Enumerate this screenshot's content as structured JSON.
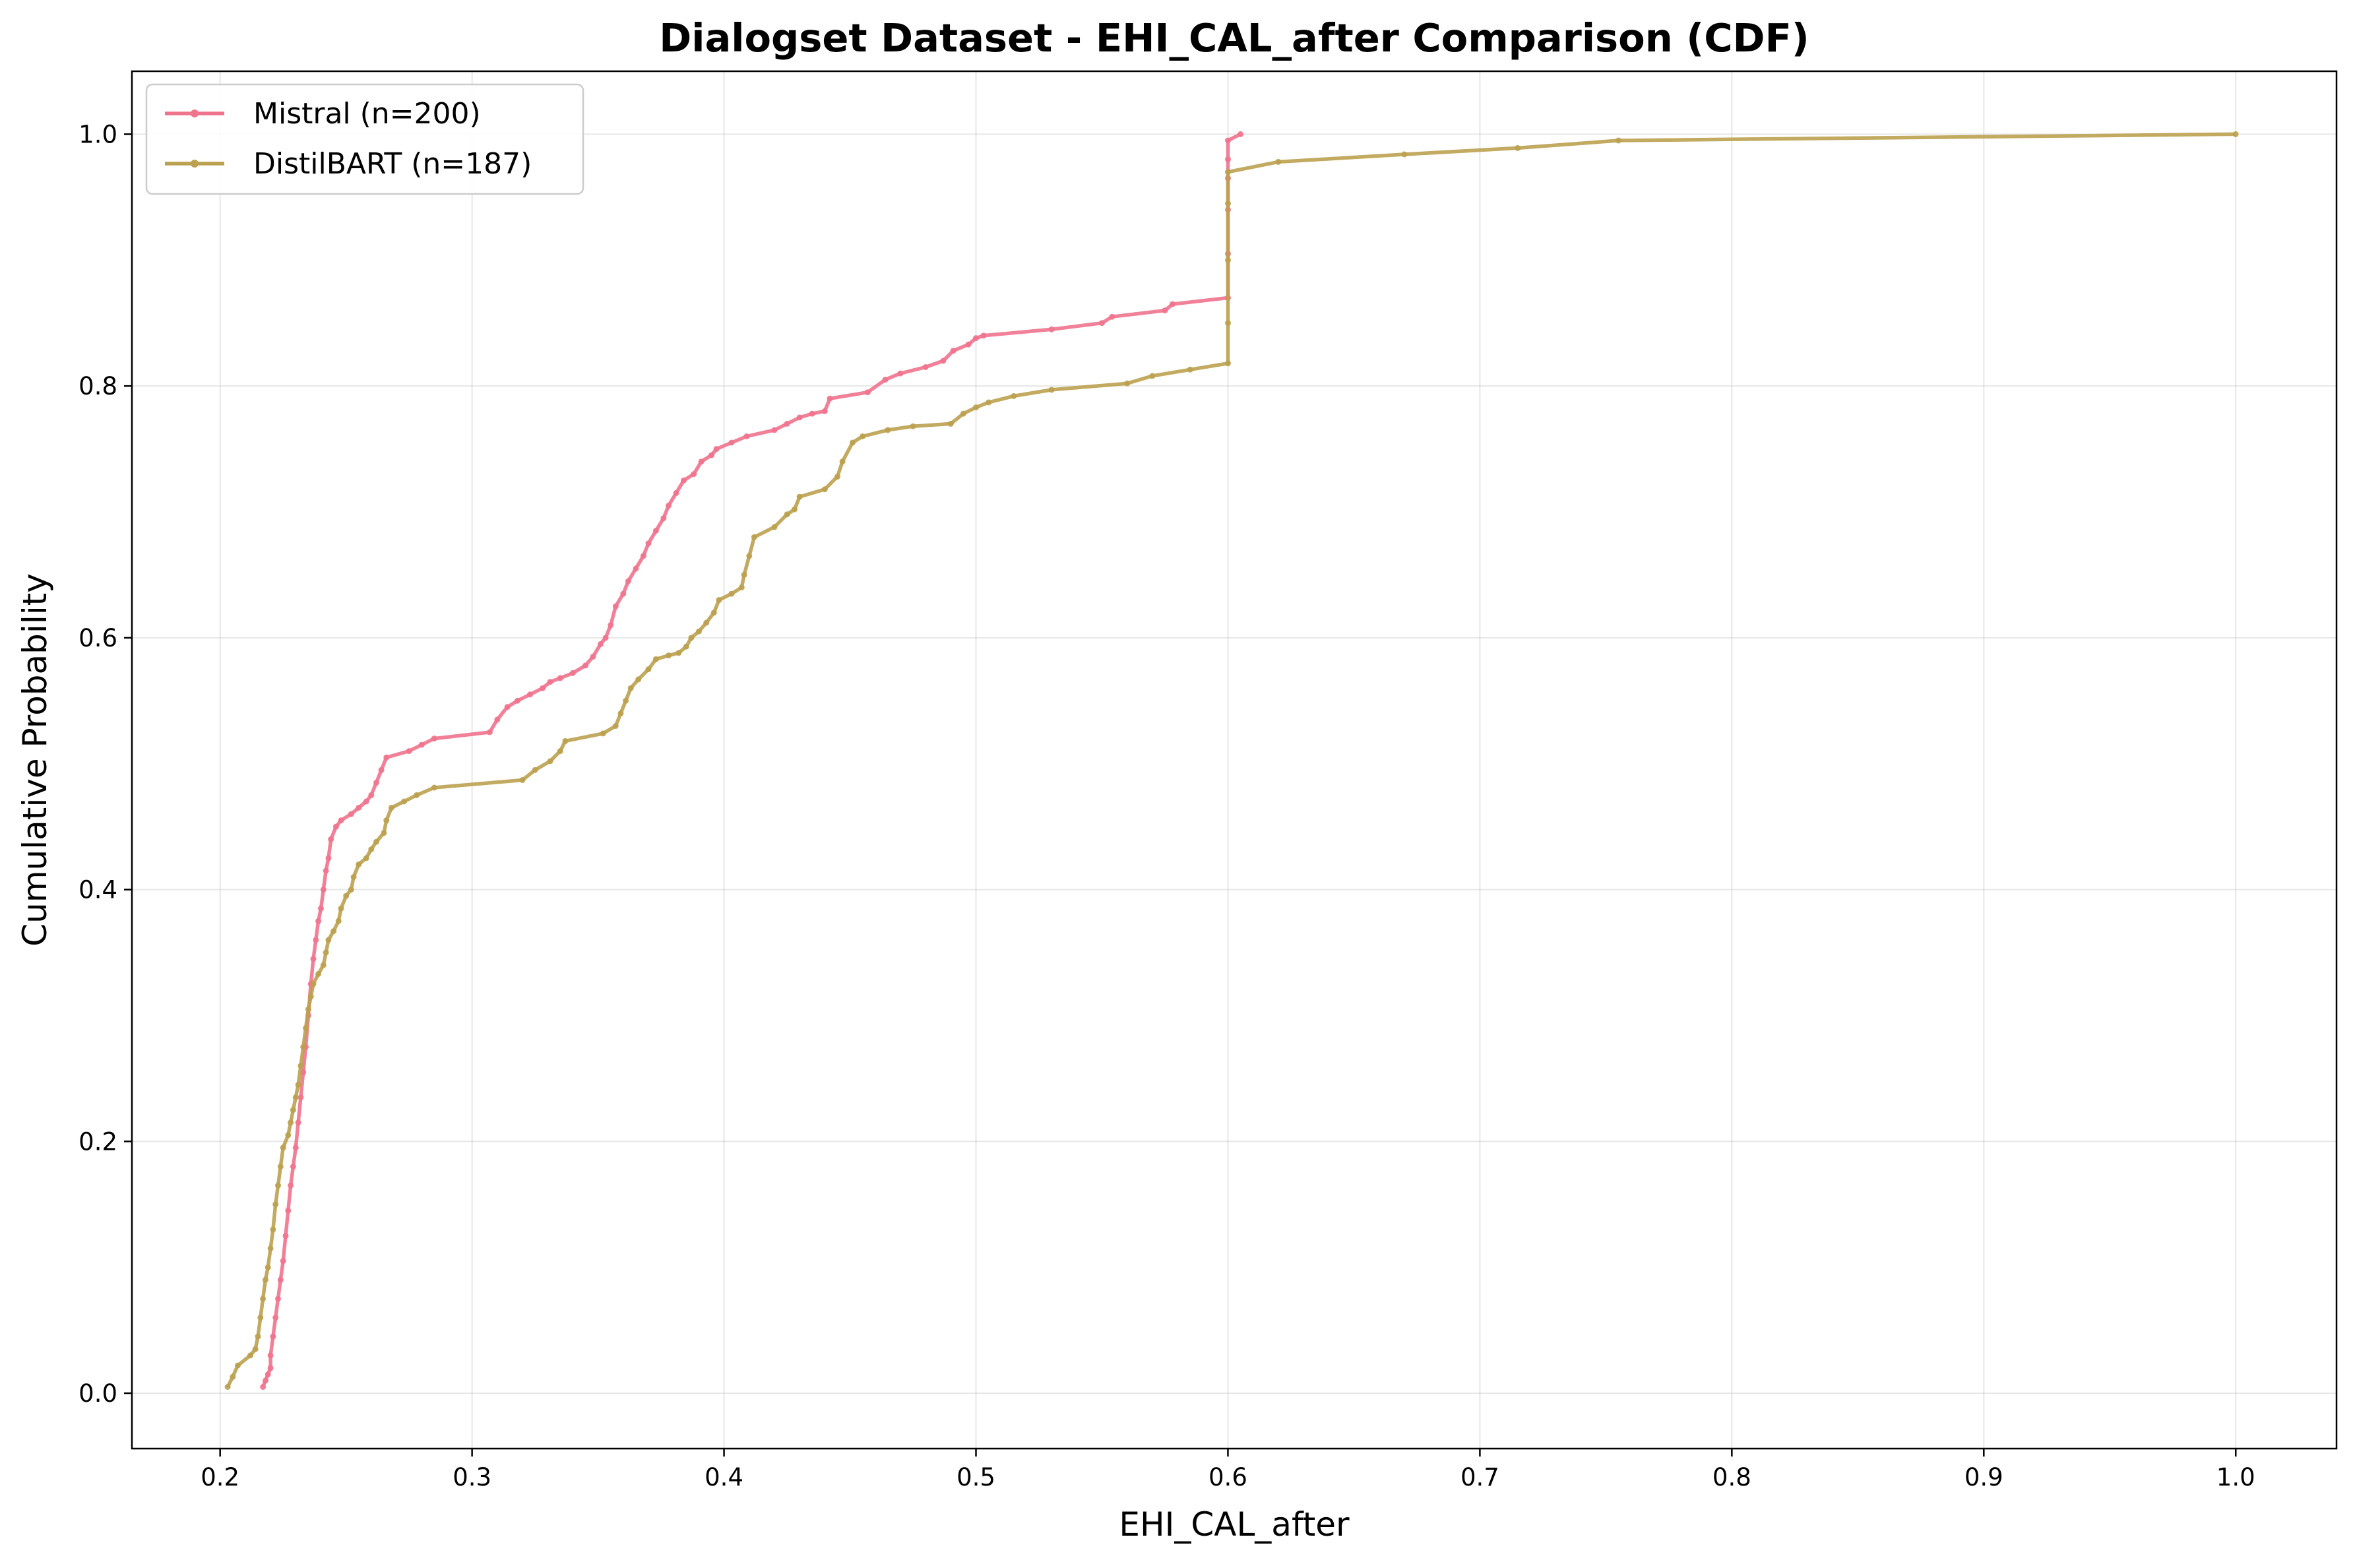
{
  "chart_data": {
    "type": "line",
    "title": "Dialogset Dataset - EHI_CAL_after Comparison (CDF)",
    "xlabel": "EHI_CAL_after",
    "ylabel": "Cumulative Probability",
    "xlim": [
      0.165,
      1.04
    ],
    "ylim": [
      -0.044,
      1.05
    ],
    "xticks": [
      0.2,
      0.3,
      0.4,
      0.5,
      0.6,
      0.7,
      0.8,
      0.9,
      1.0
    ],
    "yticks": [
      0.0,
      0.2,
      0.4,
      0.6,
      0.8,
      1.0
    ],
    "xtick_labels": [
      "0.2",
      "0.3",
      "0.4",
      "0.5",
      "0.6",
      "0.7",
      "0.8",
      "0.9",
      "1.0"
    ],
    "ytick_labels": [
      "0.0",
      "0.2",
      "0.4",
      "0.6",
      "0.8",
      "1.0"
    ],
    "grid": true,
    "legend_position": "upper-left",
    "series": [
      {
        "name": "Mistral (n=200)",
        "color": "#f0738e",
        "points": [
          [
            0.217,
            0.005
          ],
          [
            0.218,
            0.01
          ],
          [
            0.219,
            0.015
          ],
          [
            0.22,
            0.02
          ],
          [
            0.22,
            0.03
          ],
          [
            0.221,
            0.045
          ],
          [
            0.222,
            0.06
          ],
          [
            0.223,
            0.075
          ],
          [
            0.224,
            0.09
          ],
          [
            0.225,
            0.105
          ],
          [
            0.226,
            0.125
          ],
          [
            0.227,
            0.145
          ],
          [
            0.228,
            0.165
          ],
          [
            0.229,
            0.18
          ],
          [
            0.23,
            0.195
          ],
          [
            0.231,
            0.215
          ],
          [
            0.232,
            0.235
          ],
          [
            0.233,
            0.255
          ],
          [
            0.234,
            0.275
          ],
          [
            0.235,
            0.3
          ],
          [
            0.236,
            0.325
          ],
          [
            0.237,
            0.345
          ],
          [
            0.238,
            0.36
          ],
          [
            0.239,
            0.375
          ],
          [
            0.24,
            0.385
          ],
          [
            0.241,
            0.4
          ],
          [
            0.242,
            0.415
          ],
          [
            0.243,
            0.425
          ],
          [
            0.244,
            0.44
          ],
          [
            0.246,
            0.45
          ],
          [
            0.248,
            0.455
          ],
          [
            0.252,
            0.46
          ],
          [
            0.255,
            0.465
          ],
          [
            0.258,
            0.47
          ],
          [
            0.26,
            0.475
          ],
          [
            0.262,
            0.485
          ],
          [
            0.264,
            0.495
          ],
          [
            0.266,
            0.505
          ],
          [
            0.275,
            0.51
          ],
          [
            0.28,
            0.515
          ],
          [
            0.285,
            0.52
          ],
          [
            0.307,
            0.525
          ],
          [
            0.31,
            0.535
          ],
          [
            0.314,
            0.545
          ],
          [
            0.318,
            0.55
          ],
          [
            0.323,
            0.555
          ],
          [
            0.328,
            0.56
          ],
          [
            0.331,
            0.565
          ],
          [
            0.335,
            0.568
          ],
          [
            0.34,
            0.572
          ],
          [
            0.345,
            0.578
          ],
          [
            0.348,
            0.585
          ],
          [
            0.351,
            0.595
          ],
          [
            0.353,
            0.6
          ],
          [
            0.355,
            0.61
          ],
          [
            0.357,
            0.625
          ],
          [
            0.36,
            0.635
          ],
          [
            0.362,
            0.645
          ],
          [
            0.365,
            0.655
          ],
          [
            0.368,
            0.665
          ],
          [
            0.37,
            0.675
          ],
          [
            0.373,
            0.685
          ],
          [
            0.376,
            0.695
          ],
          [
            0.378,
            0.705
          ],
          [
            0.381,
            0.715
          ],
          [
            0.384,
            0.725
          ],
          [
            0.388,
            0.73
          ],
          [
            0.391,
            0.74
          ],
          [
            0.395,
            0.745
          ],
          [
            0.397,
            0.75
          ],
          [
            0.403,
            0.755
          ],
          [
            0.409,
            0.76
          ],
          [
            0.42,
            0.765
          ],
          [
            0.425,
            0.77
          ],
          [
            0.43,
            0.775
          ],
          [
            0.435,
            0.778
          ],
          [
            0.44,
            0.78
          ],
          [
            0.442,
            0.79
          ],
          [
            0.457,
            0.795
          ],
          [
            0.464,
            0.805
          ],
          [
            0.47,
            0.81
          ],
          [
            0.48,
            0.815
          ],
          [
            0.487,
            0.82
          ],
          [
            0.491,
            0.828
          ],
          [
            0.497,
            0.833
          ],
          [
            0.5,
            0.838
          ],
          [
            0.503,
            0.84
          ],
          [
            0.53,
            0.845
          ],
          [
            0.55,
            0.85
          ],
          [
            0.554,
            0.855
          ],
          [
            0.575,
            0.86
          ],
          [
            0.578,
            0.865
          ],
          [
            0.6,
            0.87
          ],
          [
            0.6,
            0.905
          ],
          [
            0.6,
            0.94
          ],
          [
            0.6,
            0.965
          ],
          [
            0.6,
            0.98
          ],
          [
            0.6,
            0.995
          ],
          [
            0.605,
            1.0
          ]
        ]
      },
      {
        "name": "DistilBART (n=187)",
        "color": "#bba14f",
        "points": [
          [
            0.203,
            0.005
          ],
          [
            0.205,
            0.013
          ],
          [
            0.207,
            0.022
          ],
          [
            0.212,
            0.03
          ],
          [
            0.214,
            0.035
          ],
          [
            0.215,
            0.045
          ],
          [
            0.216,
            0.06
          ],
          [
            0.217,
            0.075
          ],
          [
            0.218,
            0.09
          ],
          [
            0.219,
            0.1
          ],
          [
            0.22,
            0.115
          ],
          [
            0.221,
            0.13
          ],
          [
            0.222,
            0.15
          ],
          [
            0.223,
            0.165
          ],
          [
            0.224,
            0.18
          ],
          [
            0.225,
            0.195
          ],
          [
            0.227,
            0.205
          ],
          [
            0.228,
            0.215
          ],
          [
            0.229,
            0.225
          ],
          [
            0.23,
            0.235
          ],
          [
            0.231,
            0.245
          ],
          [
            0.232,
            0.26
          ],
          [
            0.233,
            0.275
          ],
          [
            0.234,
            0.29
          ],
          [
            0.235,
            0.305
          ],
          [
            0.236,
            0.315
          ],
          [
            0.237,
            0.325
          ],
          [
            0.239,
            0.333
          ],
          [
            0.241,
            0.34
          ],
          [
            0.242,
            0.35
          ],
          [
            0.243,
            0.36
          ],
          [
            0.245,
            0.367
          ],
          [
            0.247,
            0.375
          ],
          [
            0.248,
            0.385
          ],
          [
            0.25,
            0.395
          ],
          [
            0.252,
            0.4
          ],
          [
            0.253,
            0.41
          ],
          [
            0.255,
            0.42
          ],
          [
            0.258,
            0.425
          ],
          [
            0.26,
            0.432
          ],
          [
            0.262,
            0.438
          ],
          [
            0.265,
            0.445
          ],
          [
            0.266,
            0.455
          ],
          [
            0.268,
            0.465
          ],
          [
            0.273,
            0.47
          ],
          [
            0.278,
            0.475
          ],
          [
            0.285,
            0.481
          ],
          [
            0.32,
            0.487
          ],
          [
            0.325,
            0.495
          ],
          [
            0.331,
            0.502
          ],
          [
            0.335,
            0.51
          ],
          [
            0.337,
            0.518
          ],
          [
            0.352,
            0.524
          ],
          [
            0.357,
            0.53
          ],
          [
            0.359,
            0.54
          ],
          [
            0.361,
            0.55
          ],
          [
            0.363,
            0.56
          ],
          [
            0.366,
            0.567
          ],
          [
            0.37,
            0.575
          ],
          [
            0.373,
            0.583
          ],
          [
            0.378,
            0.586
          ],
          [
            0.382,
            0.588
          ],
          [
            0.385,
            0.593
          ],
          [
            0.387,
            0.6
          ],
          [
            0.39,
            0.605
          ],
          [
            0.393,
            0.612
          ],
          [
            0.396,
            0.62
          ],
          [
            0.398,
            0.63
          ],
          [
            0.403,
            0.635
          ],
          [
            0.407,
            0.64
          ],
          [
            0.408,
            0.65
          ],
          [
            0.41,
            0.665
          ],
          [
            0.412,
            0.68
          ],
          [
            0.42,
            0.688
          ],
          [
            0.425,
            0.698
          ],
          [
            0.428,
            0.702
          ],
          [
            0.43,
            0.712
          ],
          [
            0.44,
            0.718
          ],
          [
            0.445,
            0.728
          ],
          [
            0.447,
            0.74
          ],
          [
            0.451,
            0.755
          ],
          [
            0.455,
            0.76
          ],
          [
            0.465,
            0.765
          ],
          [
            0.475,
            0.768
          ],
          [
            0.49,
            0.77
          ],
          [
            0.495,
            0.778
          ],
          [
            0.5,
            0.783
          ],
          [
            0.505,
            0.787
          ],
          [
            0.515,
            0.792
          ],
          [
            0.53,
            0.797
          ],
          [
            0.56,
            0.802
          ],
          [
            0.57,
            0.808
          ],
          [
            0.585,
            0.813
          ],
          [
            0.6,
            0.818
          ],
          [
            0.6,
            0.85
          ],
          [
            0.6,
            0.9
          ],
          [
            0.6,
            0.945
          ],
          [
            0.6,
            0.97
          ],
          [
            0.62,
            0.978
          ],
          [
            0.67,
            0.984
          ],
          [
            0.715,
            0.989
          ],
          [
            0.755,
            0.995
          ],
          [
            1.0,
            1.0
          ]
        ]
      }
    ]
  }
}
